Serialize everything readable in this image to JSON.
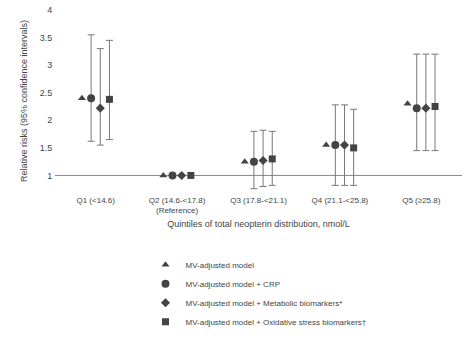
{
  "chart_data": {
    "type": "scatter",
    "xlabel": "Quintiles of total neopterin distribution, nmol/L",
    "ylabel": "Relative risks (95% confidence intervals)",
    "categories": [
      "Q1 (<14.6)",
      "Q2 (14.6-<17.8)\n(Reference)",
      "Q3 (17.8-<21.1)",
      "Q4 (21.1-<25.8)",
      "Q5 (≥25.8)"
    ],
    "series": [
      {
        "name": "MV-adjusted model",
        "color": "#444444",
        "marker": "triangle-up",
        "values": [
          2.4,
          1.0,
          1.25,
          1.55,
          2.3
        ],
        "ci_low": [
          null,
          null,
          null,
          null,
          null
        ],
        "ci_high": [
          null,
          null,
          null,
          null,
          null
        ]
      },
      {
        "name": "MV-adjusted model + CRP",
        "color": "#444444",
        "marker": "circle",
        "values": [
          2.4,
          1.0,
          1.25,
          1.55,
          2.22
        ],
        "ci_low": [
          1.62,
          null,
          0.76,
          0.82,
          1.45
        ],
        "ci_high": [
          3.55,
          null,
          1.8,
          2.28,
          3.2
        ]
      },
      {
        "name": "MV-adjusted model + Metabolic biomarkers*",
        "color": "#444444",
        "marker": "diamond",
        "values": [
          2.22,
          1.0,
          1.27,
          1.55,
          2.22
        ],
        "ci_low": [
          1.55,
          null,
          0.8,
          0.82,
          1.45
        ],
        "ci_high": [
          3.3,
          null,
          1.82,
          2.28,
          3.2
        ]
      },
      {
        "name": "MV-adjusted model + Oxidative stress biomarkers†",
        "color": "#444444",
        "marker": "square",
        "values": [
          2.38,
          1.0,
          1.3,
          1.5,
          2.25
        ],
        "ci_low": [
          1.65,
          null,
          0.82,
          0.82,
          1.45
        ],
        "ci_high": [
          3.45,
          null,
          1.8,
          2.2,
          3.2
        ]
      }
    ],
    "ylim": [
      0.7,
      4.0
    ],
    "yticks": [
      1.0,
      1.5,
      2.0,
      2.5,
      3.0,
      3.5,
      4.0
    ],
    "reference_line": 1.0,
    "grid": false,
    "legend": "bottom"
  }
}
